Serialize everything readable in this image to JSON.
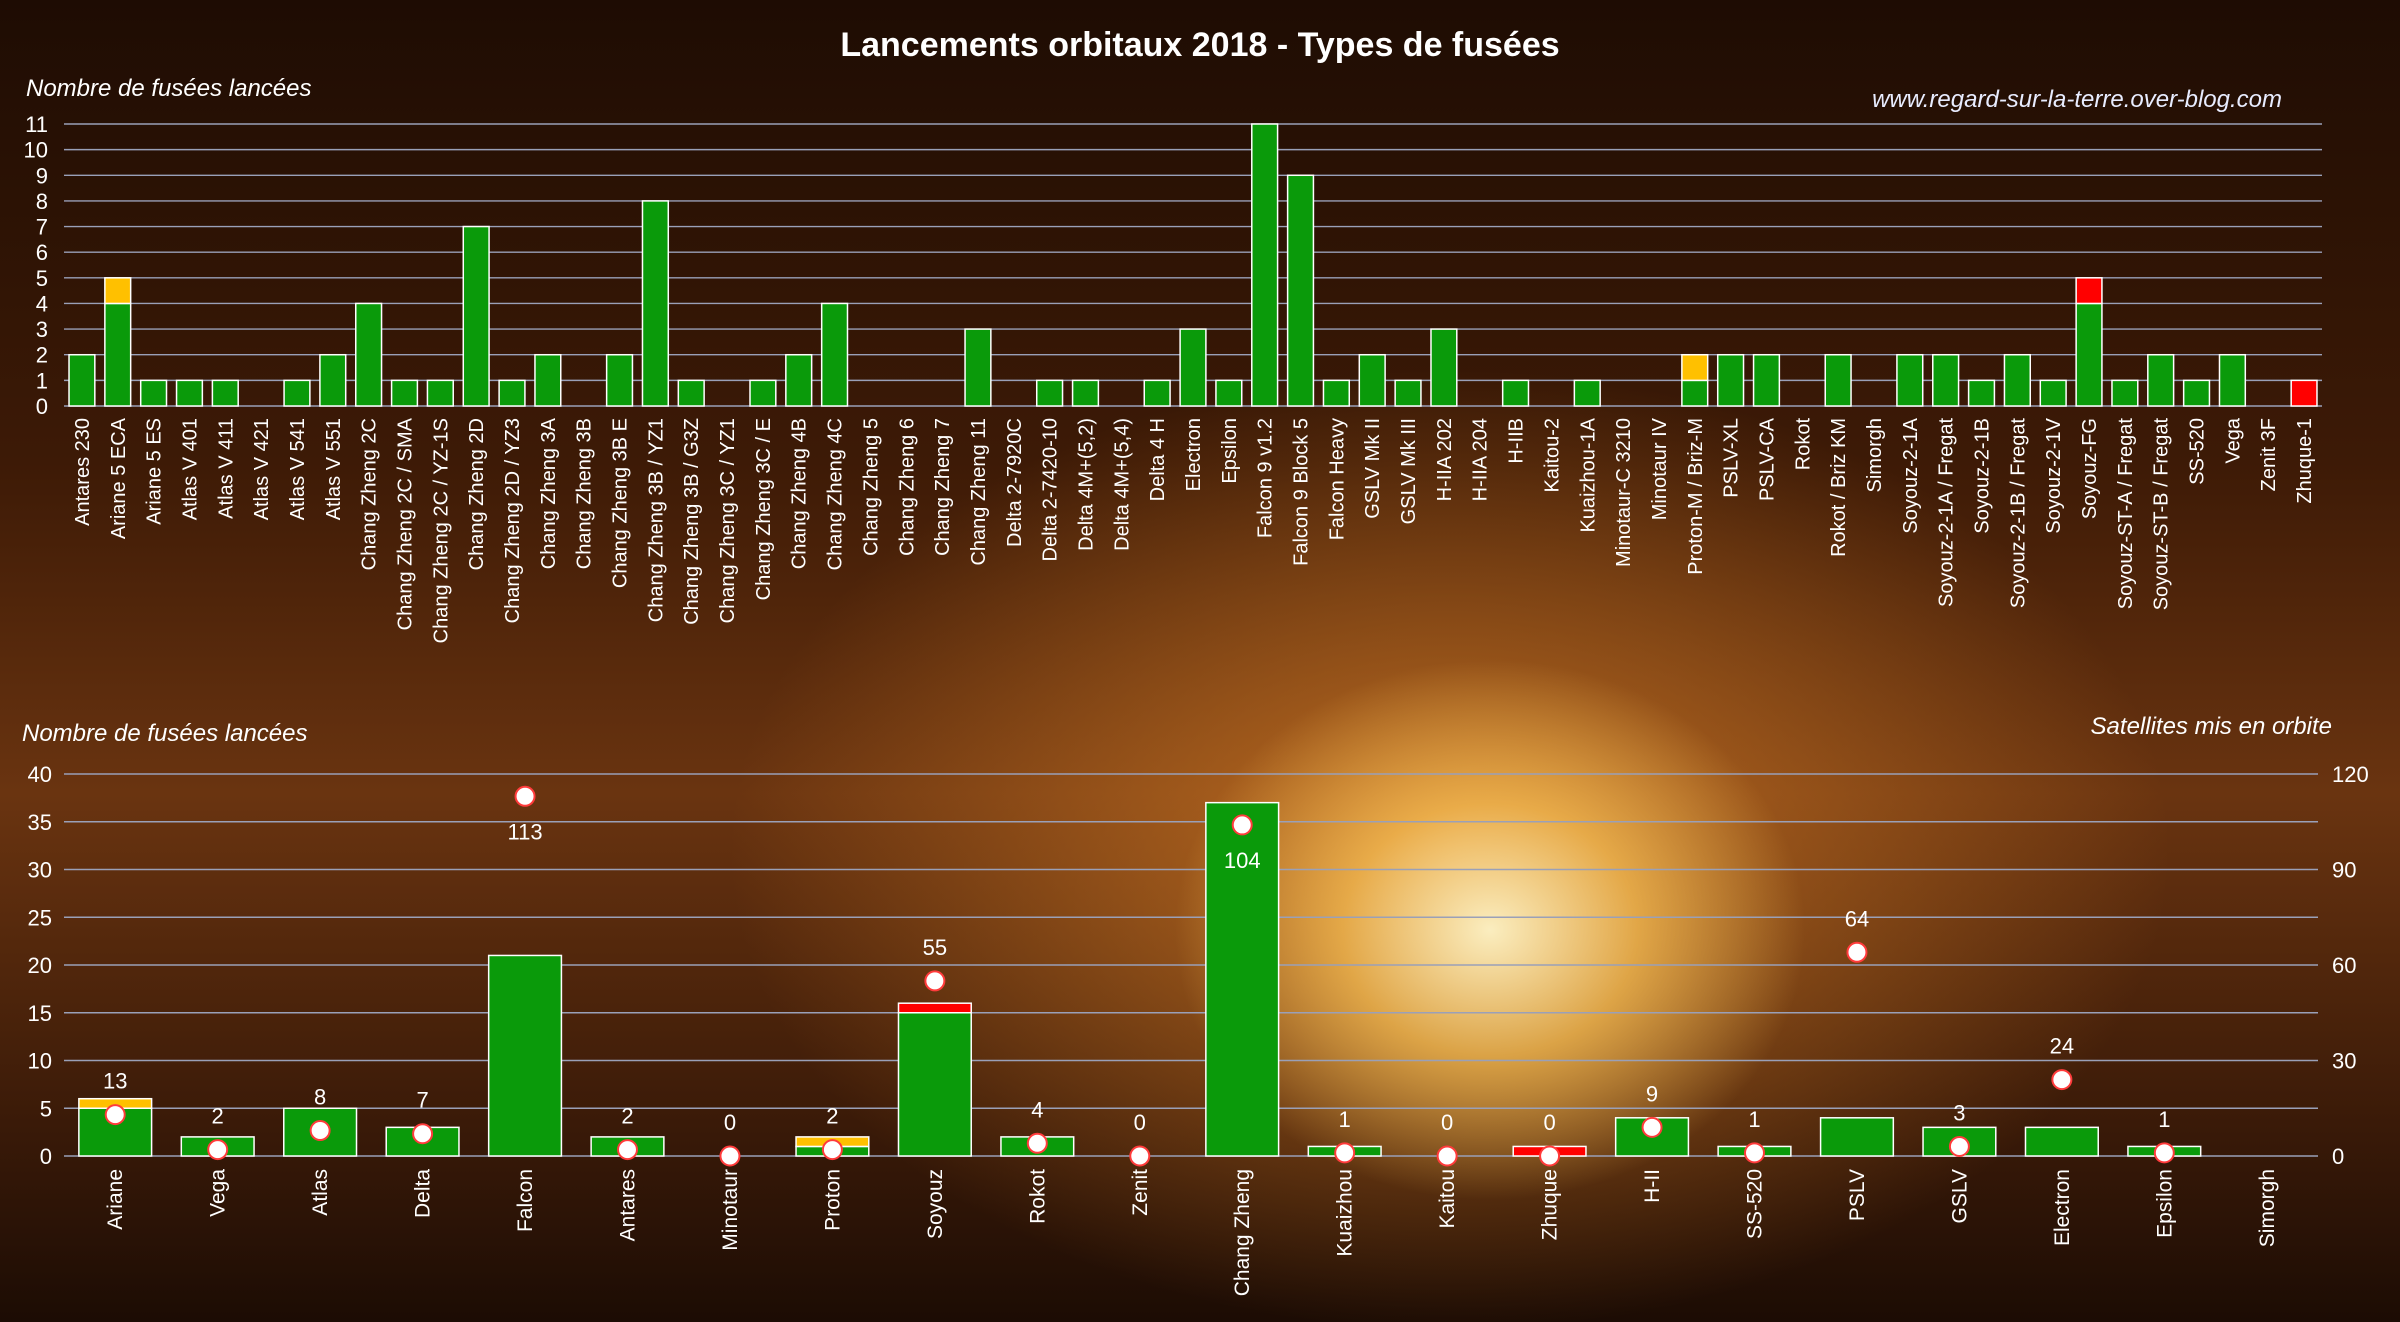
{
  "title": "Lancements orbitaux 2018 - Types de fusées",
  "website": "www.regard-sur-la-terre.over-blog.com",
  "colors": {
    "success": "#0a9a0a",
    "partial": "#ffc000",
    "failure": "#ff0000",
    "satellite_marker_fill": "#ffffff",
    "satellite_marker_stroke": "#ff3b3b",
    "grid": "#9aa0b8"
  },
  "chart_data": [
    {
      "type": "bar",
      "stacked": true,
      "ylabel": "Nombre de fusées lancées",
      "ylim": [
        0,
        11
      ],
      "yticks": [
        0,
        1,
        2,
        3,
        4,
        5,
        6,
        7,
        8,
        9,
        10,
        11
      ],
      "grid": true,
      "categories": [
        "Antares 230",
        "Ariane 5 ECA",
        "Ariane 5 ES",
        "Atlas V 401",
        "Atlas V 411",
        "Atlas V 421",
        "Atlas V 541",
        "Atlas V 551",
        "Chang Zheng 2C",
        "Chang Zheng 2C / SMA",
        "Chang Zheng 2C / YZ-1S",
        "Chang Zheng 2D",
        "Chang Zheng 2D / YZ3",
        "Chang Zheng 3A",
        "Chang Zheng 3B",
        "Chang Zheng 3B E",
        "Chang Zheng 3B / YZ1",
        "Chang Zheng 3B / G3Z",
        "Chang Zheng 3C / YZ1",
        "Chang Zheng 3C / E",
        "Chang Zheng 4B",
        "Chang Zheng 4C",
        "Chang Zheng 5",
        "Chang Zheng 6",
        "Chang Zheng 7",
        "Chang Zheng 11",
        "Delta 2-7920C",
        "Delta 2-7420-10",
        "Delta 4M+(5,2)",
        "Delta 4M+(5,4)",
        "Delta 4 H",
        "Electron",
        "Epsilon",
        "Falcon 9 v1.2",
        "Falcon 9 Block 5",
        "Falcon Heavy",
        "GSLV Mk II",
        "GSLV Mk III",
        "H-IIA 202",
        "H-IIA 204",
        "H-IIB",
        "Kaitou-2",
        "Kuaizhou-1A",
        "Minotaur-C 3210",
        "Minotaur IV",
        "Proton-M / Briz-M",
        "PSLV-XL",
        "PSLV-CA",
        "Rokot",
        "Rokot / Briz KM",
        "Simorgh",
        "Soyouz-2-1A",
        "Soyouz-2-1A / Fregat",
        "Soyouz-2-1B",
        "Soyouz-2-1B / Fregat",
        "Soyouz-2-1V",
        "Soyouz-FG",
        "Soyouz-ST-A / Fregat",
        "Soyouz-ST-B / Fregat",
        "SS-520",
        "Vega",
        "Zenit 3F",
        "Zhuque-1"
      ],
      "series": [
        {
          "key": "success",
          "values": [
            2,
            4,
            1,
            1,
            1,
            0,
            1,
            2,
            4,
            1,
            1,
            7,
            1,
            2,
            0,
            2,
            8,
            1,
            0,
            1,
            2,
            4,
            0,
            0,
            0,
            3,
            0,
            1,
            1,
            0,
            1,
            3,
            1,
            11,
            9,
            1,
            2,
            1,
            3,
            0,
            1,
            0,
            1,
            0,
            0,
            1,
            2,
            2,
            0,
            2,
            0,
            2,
            2,
            1,
            2,
            1,
            4,
            1,
            2,
            1,
            2,
            0,
            0
          ]
        },
        {
          "key": "partial",
          "values": [
            0,
            1,
            0,
            0,
            0,
            0,
            0,
            0,
            0,
            0,
            0,
            0,
            0,
            0,
            0,
            0,
            0,
            0,
            0,
            0,
            0,
            0,
            0,
            0,
            0,
            0,
            0,
            0,
            0,
            0,
            0,
            0,
            0,
            0,
            0,
            0,
            0,
            0,
            0,
            0,
            0,
            0,
            0,
            0,
            0,
            1,
            0,
            0,
            0,
            0,
            0,
            0,
            0,
            0,
            0,
            0,
            0,
            0,
            0,
            0,
            0,
            0,
            0
          ]
        },
        {
          "key": "failure",
          "values": [
            0,
            0,
            0,
            0,
            0,
            0,
            0,
            0,
            0,
            0,
            0,
            0,
            0,
            0,
            0,
            0,
            0,
            0,
            0,
            0,
            0,
            0,
            0,
            0,
            0,
            0,
            0,
            0,
            0,
            0,
            0,
            0,
            0,
            0,
            0,
            0,
            0,
            0,
            0,
            0,
            0,
            0,
            0,
            0,
            0,
            0,
            0,
            0,
            0,
            0,
            0,
            0,
            0,
            0,
            0,
            0,
            1,
            0,
            0,
            0,
            0,
            0,
            1
          ]
        }
      ]
    },
    {
      "type": "bar",
      "stacked": true,
      "ylabel": "Nombre de fusées lancées",
      "y2label": "Satellites mis en orbite",
      "ylim": [
        0,
        40
      ],
      "yticks": [
        0,
        5,
        10,
        15,
        20,
        25,
        30,
        35,
        40
      ],
      "y2lim": [
        0,
        120
      ],
      "y2ticks": [
        0,
        30,
        60,
        90,
        120
      ],
      "grid": true,
      "categories": [
        "Ariane",
        "Vega",
        "Atlas",
        "Delta",
        "Falcon",
        "Antares",
        "Minotaur",
        "Proton",
        "Soyouz",
        "Rokot",
        "Zenit",
        "Chang Zheng",
        "Kuaizhou",
        "Kaitou",
        "Zhuque",
        "H-II",
        "SS-520",
        "PSLV",
        "GSLV",
        "Electron",
        "Epsilon",
        "Simorgh"
      ],
      "series": [
        {
          "key": "success",
          "values": [
            5,
            2,
            5,
            3,
            21,
            2,
            0,
            1,
            15,
            2,
            0,
            37,
            1,
            0,
            0,
            4,
            1,
            4,
            3,
            3,
            1,
            0
          ]
        },
        {
          "key": "partial",
          "values": [
            1,
            0,
            0,
            0,
            0,
            0,
            0,
            1,
            0,
            0,
            0,
            0,
            0,
            0,
            0,
            0,
            0,
            0,
            0,
            0,
            0,
            0
          ]
        },
        {
          "key": "failure",
          "values": [
            0,
            0,
            0,
            0,
            0,
            0,
            0,
            0,
            1,
            0,
            0,
            0,
            0,
            0,
            1,
            0,
            0,
            0,
            0,
            0,
            0,
            0
          ]
        }
      ],
      "satellites": [
        13,
        2,
        8,
        7,
        113,
        2,
        0,
        2,
        55,
        4,
        0,
        104,
        1,
        0,
        0,
        9,
        1,
        64,
        3,
        24,
        1,
        null
      ],
      "satellite_labels": [
        "13",
        "2",
        "8",
        "7",
        "113",
        "2",
        "0",
        "2",
        "55",
        "4",
        "0",
        "104",
        "1",
        "0",
        "0",
        "9",
        "1",
        "64",
        "3",
        "24",
        "1",
        ""
      ]
    }
  ]
}
